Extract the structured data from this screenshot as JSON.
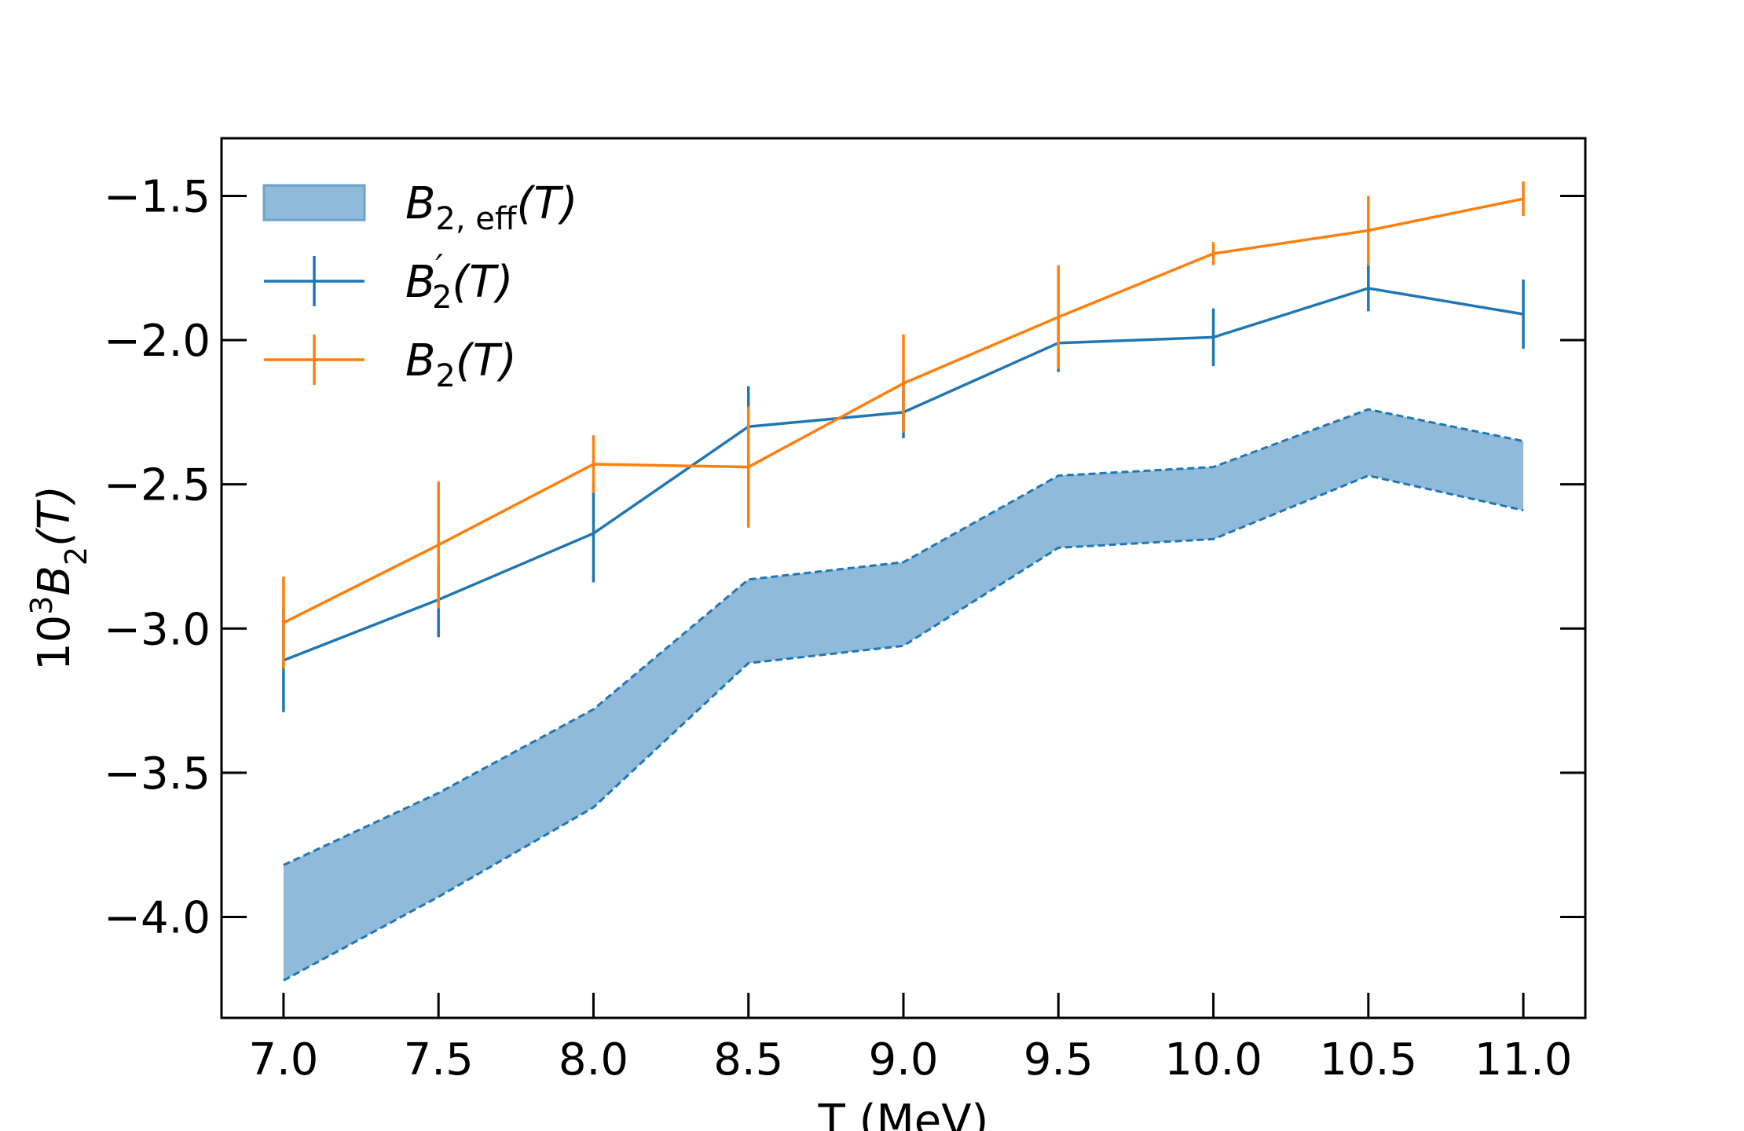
{
  "chart_data": {
    "type": "line",
    "title": "",
    "xlabel": "T (MeV)",
    "ylabel": "10³B₂(T)",
    "ylabel_parts": {
      "base": "10",
      "exp": "3",
      "var": "B",
      "sub": "2",
      "arg": "(T)"
    },
    "xlim": [
      6.8,
      11.2
    ],
    "ylim": [
      -4.35,
      -1.3
    ],
    "x": [
      7.0,
      7.5,
      8.0,
      8.5,
      9.0,
      9.5,
      10.0,
      10.5,
      11.0
    ],
    "xticks": [
      "7.0",
      "7.5",
      "8.0",
      "8.5",
      "9.0",
      "9.5",
      "10.0",
      "10.5",
      "11.0"
    ],
    "yticks": [
      -4.0,
      -3.5,
      -3.0,
      -2.5,
      -2.0,
      -1.5
    ],
    "ytick_labels": [
      "−4.0",
      "−3.5",
      "−3.0",
      "−2.5",
      "−2.0",
      "−1.5"
    ],
    "band": {
      "name": "B2,eff(T)",
      "upper": [
        -3.82,
        -3.57,
        -3.28,
        -2.83,
        -2.77,
        -2.47,
        -2.44,
        -2.24,
        -2.35
      ],
      "lower": [
        -4.22,
        -3.93,
        -3.62,
        -3.12,
        -3.06,
        -2.72,
        -2.69,
        -2.47,
        -2.59
      ],
      "color": "#8fbad9",
      "edge_color": "#1f77b4"
    },
    "series": [
      {
        "name": "B2'(T)",
        "values": [
          -3.11,
          -2.9,
          -2.67,
          -2.3,
          -2.25,
          -2.01,
          -1.99,
          -1.82,
          -1.91
        ],
        "errors": [
          0.18,
          0.13,
          0.17,
          0.14,
          0.09,
          0.1,
          0.1,
          0.08,
          0.12
        ],
        "color": "#1f77b4"
      },
      {
        "name": "B2(T)",
        "values": [
          -2.98,
          -2.71,
          -2.43,
          -2.44,
          -2.15,
          -1.92,
          -1.7,
          -1.62,
          -1.51
        ],
        "errors": [
          0.16,
          0.22,
          0.1,
          0.21,
          0.17,
          0.18,
          0.04,
          0.12,
          0.06
        ],
        "color": "#ff7f0e"
      }
    ],
    "legend": {
      "position": "top-left",
      "entries": [
        {
          "base": "B",
          "sub": "2, eff",
          "prime": "",
          "arg": "(T)"
        },
        {
          "base": "B",
          "sub": "2",
          "prime": "′",
          "arg": "(T)"
        },
        {
          "base": "B",
          "sub": "2",
          "prime": "",
          "arg": "(T)"
        }
      ]
    },
    "grid": false
  }
}
